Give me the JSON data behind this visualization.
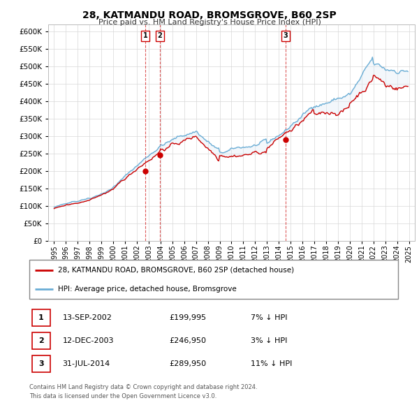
{
  "title": "28, KATMANDU ROAD, BROMSGROVE, B60 2SP",
  "subtitle": "Price paid vs. HM Land Registry's House Price Index (HPI)",
  "legend_line1": "28, KATMANDU ROAD, BROMSGROVE, B60 2SP (detached house)",
  "legend_line2": "HPI: Average price, detached house, Bromsgrove",
  "footer1": "Contains HM Land Registry data © Crown copyright and database right 2024.",
  "footer2": "This data is licensed under the Open Government Licence v3.0.",
  "transactions": [
    {
      "num": 1,
      "date": "13-SEP-2002",
      "price": "£199,995",
      "hpi": "7% ↓ HPI"
    },
    {
      "num": 2,
      "date": "12-DEC-2003",
      "price": "£246,950",
      "hpi": "3% ↓ HPI"
    },
    {
      "num": 3,
      "date": "31-JUL-2014",
      "price": "£289,950",
      "hpi": "11% ↓ HPI"
    }
  ],
  "transaction_dates_decimal": [
    2002.71,
    2003.95,
    2014.58
  ],
  "transaction_prices": [
    199995,
    246950,
    289950
  ],
  "ylim": [
    0,
    620000
  ],
  "yticks": [
    0,
    50000,
    100000,
    150000,
    200000,
    250000,
    300000,
    350000,
    400000,
    450000,
    500000,
    550000,
    600000
  ],
  "xlim_start": 1994.5,
  "xlim_end": 2025.5,
  "red_color": "#cc0000",
  "blue_color": "#6aadd5",
  "fill_color": "#ddeaf5",
  "background_color": "#ffffff",
  "grid_color": "#d8d8d8"
}
